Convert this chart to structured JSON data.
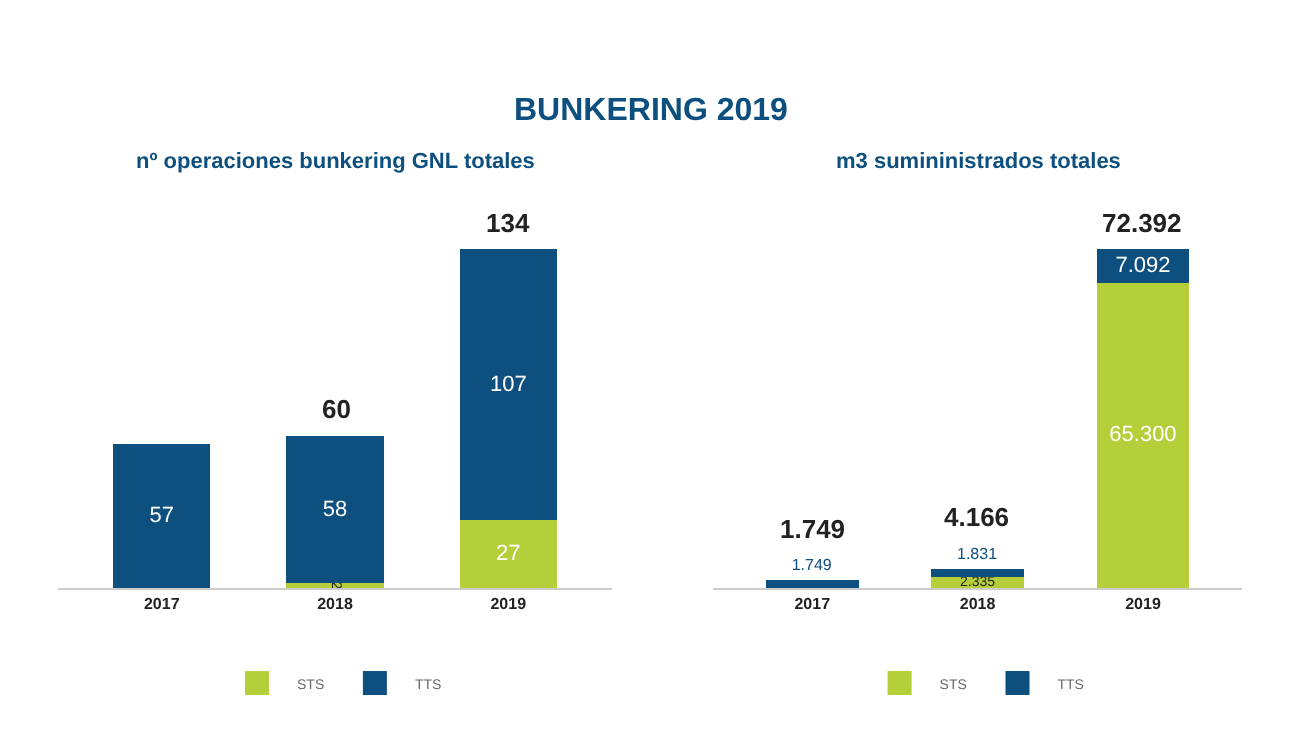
{
  "chart_data": [
    {
      "type": "bar",
      "title": "BUNKERING 2019",
      "subtitle": "nº operaciones bunkering GNL totales",
      "categories": [
        "2017",
        "2018",
        "2019"
      ],
      "stacked": true,
      "legend": "bottom",
      "series": [
        {
          "name": "STS",
          "color": "#b5cf3a",
          "values": [
            null,
            2,
            27
          ],
          "value_labels": [
            null,
            "2",
            "27"
          ]
        },
        {
          "name": "TTS",
          "color": "#0d4f7e",
          "values": [
            57,
            58,
            107
          ],
          "value_labels": [
            "57",
            "58",
            "107"
          ]
        }
      ],
      "totals": [
        null,
        "60",
        "134"
      ]
    },
    {
      "type": "bar",
      "subtitle": "m3 sumininistrados totales",
      "categories": [
        "2017",
        "2018",
        "2019"
      ],
      "stacked": true,
      "legend": "bottom",
      "series": [
        {
          "name": "STS",
          "color": "#b5cf3a",
          "values": [
            null,
            2335,
            65300
          ],
          "value_labels": [
            null,
            "2.335",
            "65.300"
          ]
        },
        {
          "name": "TTS",
          "color": "#0d4f7e",
          "values": [
            1749,
            1831,
            7092
          ],
          "value_labels": [
            "1.749",
            "1.831",
            "7.092"
          ]
        }
      ],
      "totals": [
        "1.749",
        "4.166",
        "72.392"
      ]
    }
  ]
}
